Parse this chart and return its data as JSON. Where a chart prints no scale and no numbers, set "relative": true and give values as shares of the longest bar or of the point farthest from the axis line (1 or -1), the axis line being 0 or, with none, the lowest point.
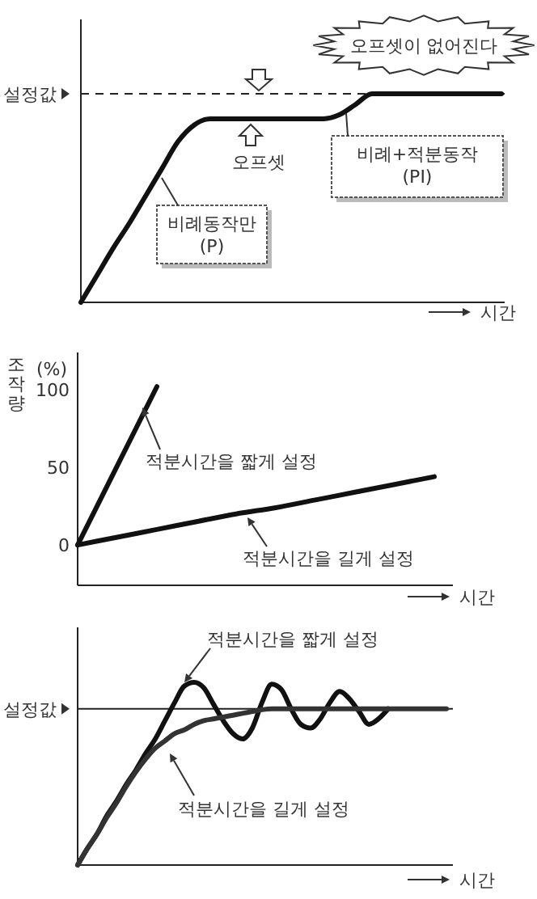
{
  "chart_data": [
    {
      "type": "line",
      "relative": true,
      "tick_labels": false,
      "grid": false,
      "xlabel": "시간",
      "categories": [
        null,
        null,
        null,
        null,
        null,
        null,
        null,
        null,
        null,
        null,
        null,
        null,
        null,
        null,
        null,
        null,
        null,
        null,
        null,
        null,
        null,
        null,
        null,
        null,
        null,
        null,
        null
      ],
      "series": [
        {
          "color": "#111111",
          "values": [
            0,
            0.13,
            0.26,
            0.38,
            0.51,
            0.64,
            0.77,
            0.85,
            0.88,
            0.88,
            0.88,
            0.88,
            0.88,
            0.88,
            0.88,
            0.88,
            0.9,
            0.95,
            1,
            1,
            1,
            1,
            1,
            1,
            1,
            1,
            1
          ]
        }
      ],
      "ref_lines": [
        {
          "axis": "y",
          "value": 1,
          "label": "설정값",
          "line_style": "dashed",
          "color": "#222222"
        }
      ],
      "annotations": [
        "오프셋이 없어진다",
        "오프셋",
        "비례동작만\n(P)",
        "비례+적분동작\n(PI)"
      ]
    },
    {
      "type": "line",
      "tick_labels": "y",
      "grid": false,
      "xlabel": "시간",
      "ylabel": "조작량",
      "categories": [
        null,
        null,
        null,
        null,
        null,
        null,
        null,
        null,
        null,
        null
      ],
      "ylim": [
        -26,
        124
      ],
      "yticks": [
        0,
        50,
        100
      ],
      "series": [
        {
          "color": "#111111",
          "values": [
            0,
            51,
            102,
            null,
            null,
            null,
            null,
            null,
            null,
            null
          ]
        },
        {
          "color": "#111111",
          "values": [
            0,
            5,
            10,
            15,
            20,
            24,
            29,
            34,
            39,
            44
          ]
        }
      ],
      "annotations": [
        "(%)",
        "적분시간을 짧게 설정",
        "적분시간을 길게 설정"
      ]
    },
    {
      "type": "line",
      "relative": true,
      "tick_labels": false,
      "grid": false,
      "xlabel": "시간",
      "categories": [
        null,
        null,
        null,
        null,
        null,
        null,
        null,
        null,
        null,
        null,
        null,
        null,
        null,
        null,
        null,
        null,
        null,
        null,
        null,
        null,
        null,
        null,
        null,
        null,
        null,
        null,
        null,
        null,
        null,
        null,
        null,
        null,
        null,
        null,
        null,
        null,
        null,
        null,
        null
      ],
      "series": [
        {
          "color": "#111111",
          "values": [
            0,
            0.09,
            0.17,
            0.27,
            0.35,
            0.44,
            0.52,
            0.61,
            0.69,
            0.79,
            0.89,
            0.98,
            1,
            0.97,
            0.88,
            0.79,
            0.72,
            0.69,
            0.75,
            0.89,
            0.99,
            0.96,
            0.855,
            0.77,
            0.75,
            0.8,
            0.89,
            0.95,
            0.91,
            0.84,
            0.77,
            0.8,
            0.855,
            null,
            null,
            null,
            null,
            null,
            null
          ]
        },
        {
          "color": "#333333",
          "values": [
            0,
            0.09,
            0.17,
            0.26,
            0.34,
            0.43,
            0.51,
            0.58,
            0.64,
            0.68,
            0.72,
            0.74,
            0.77,
            0.79,
            0.8,
            0.81,
            0.82,
            0.83,
            0.84,
            0.85,
            0.855,
            0.855,
            0.855,
            0.855,
            0.855,
            0.855,
            0.855,
            0.855,
            0.855,
            0.855,
            0.855,
            0.855,
            0.855,
            0.855,
            0.855,
            0.855,
            0.855,
            0.855,
            0.855
          ]
        }
      ],
      "ref_lines": [
        {
          "axis": "y",
          "value": 0.855,
          "label": "설정값",
          "line_style": "solid",
          "color": "#222222"
        }
      ],
      "annotations": [
        "적분시간을 짧게 설정",
        "적분시간을 길게 설정"
      ]
    }
  ]
}
